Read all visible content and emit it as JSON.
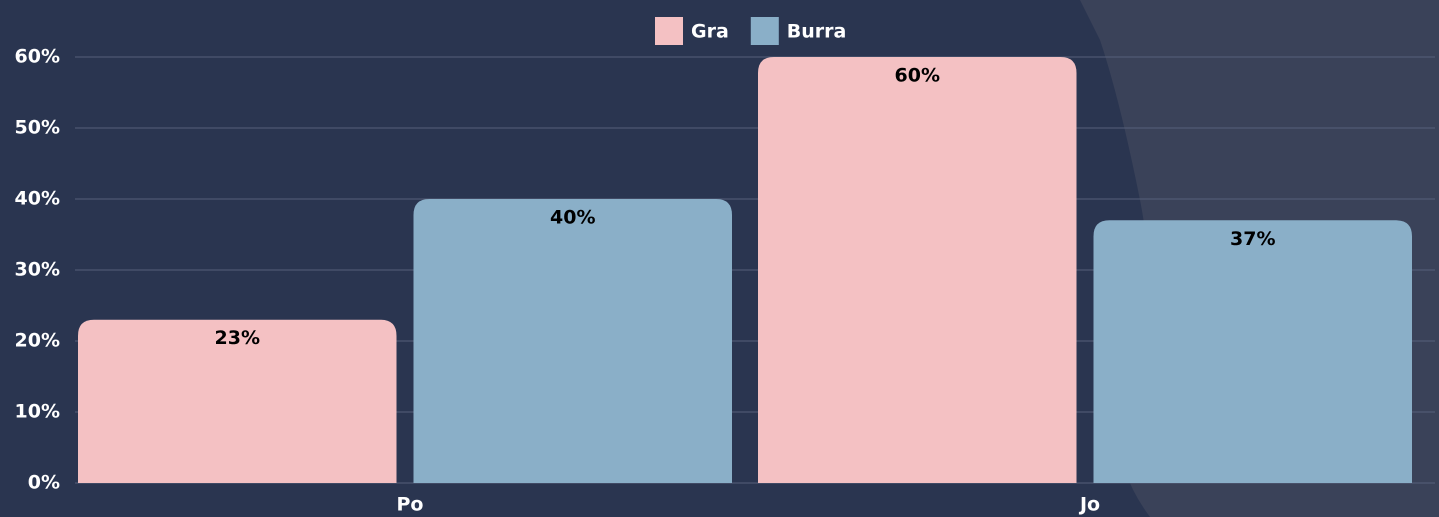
{
  "chart_data": {
    "type": "bar",
    "categories": [
      "Po",
      "Jo"
    ],
    "series": [
      {
        "name": "Gra",
        "color": "#f4c1c3",
        "values": [
          23,
          60
        ],
        "value_labels": [
          "23%",
          "60%"
        ]
      },
      {
        "name": "Burra",
        "color": "#8aafc8",
        "values": [
          40,
          37
        ],
        "value_labels": [
          "40%",
          "37%"
        ]
      }
    ],
    "ylim": [
      0,
      60
    ],
    "yticks": [
      {
        "value": 0,
        "label": "0%"
      },
      {
        "value": 10,
        "label": "10%"
      },
      {
        "value": 20,
        "label": "20%"
      },
      {
        "value": 30,
        "label": "30%"
      },
      {
        "value": 40,
        "label": "40%"
      },
      {
        "value": 50,
        "label": "50%"
      },
      {
        "value": 60,
        "label": "60%"
      }
    ],
    "grid": true,
    "legend": "top"
  }
}
